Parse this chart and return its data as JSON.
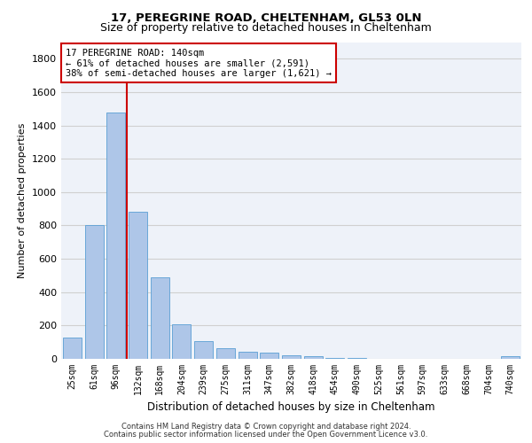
{
  "title1": "17, PEREGRINE ROAD, CHELTENHAM, GL53 0LN",
  "title2": "Size of property relative to detached houses in Cheltenham",
  "xlabel": "Distribution of detached houses by size in Cheltenham",
  "ylabel": "Number of detached properties",
  "categories": [
    "25sqm",
    "61sqm",
    "96sqm",
    "132sqm",
    "168sqm",
    "204sqm",
    "239sqm",
    "275sqm",
    "311sqm",
    "347sqm",
    "382sqm",
    "418sqm",
    "454sqm",
    "490sqm",
    "525sqm",
    "561sqm",
    "597sqm",
    "633sqm",
    "668sqm",
    "704sqm",
    "740sqm"
  ],
  "values": [
    125,
    800,
    1480,
    880,
    490,
    205,
    105,
    65,
    45,
    35,
    22,
    14,
    5,
    3,
    2,
    2,
    2,
    0,
    0,
    0,
    15
  ],
  "bar_color": "#aec6e8",
  "bar_edgecolor": "#5a9fd4",
  "grid_color": "#d0d0d0",
  "annotation_line_color": "#cc0000",
  "annotation_box_text": "17 PEREGRINE ROAD: 140sqm\n← 61% of detached houses are smaller (2,591)\n38% of semi-detached houses are larger (1,621) →",
  "annotation_box_facecolor": "white",
  "annotation_box_edgecolor": "#cc0000",
  "ylim": [
    0,
    1900
  ],
  "yticks": [
    0,
    200,
    400,
    600,
    800,
    1000,
    1200,
    1400,
    1600,
    1800
  ],
  "footer_line1": "Contains HM Land Registry data © Crown copyright and database right 2024.",
  "footer_line2": "Contains public sector information licensed under the Open Government Licence v3.0.",
  "bg_color": "#eef2f9"
}
